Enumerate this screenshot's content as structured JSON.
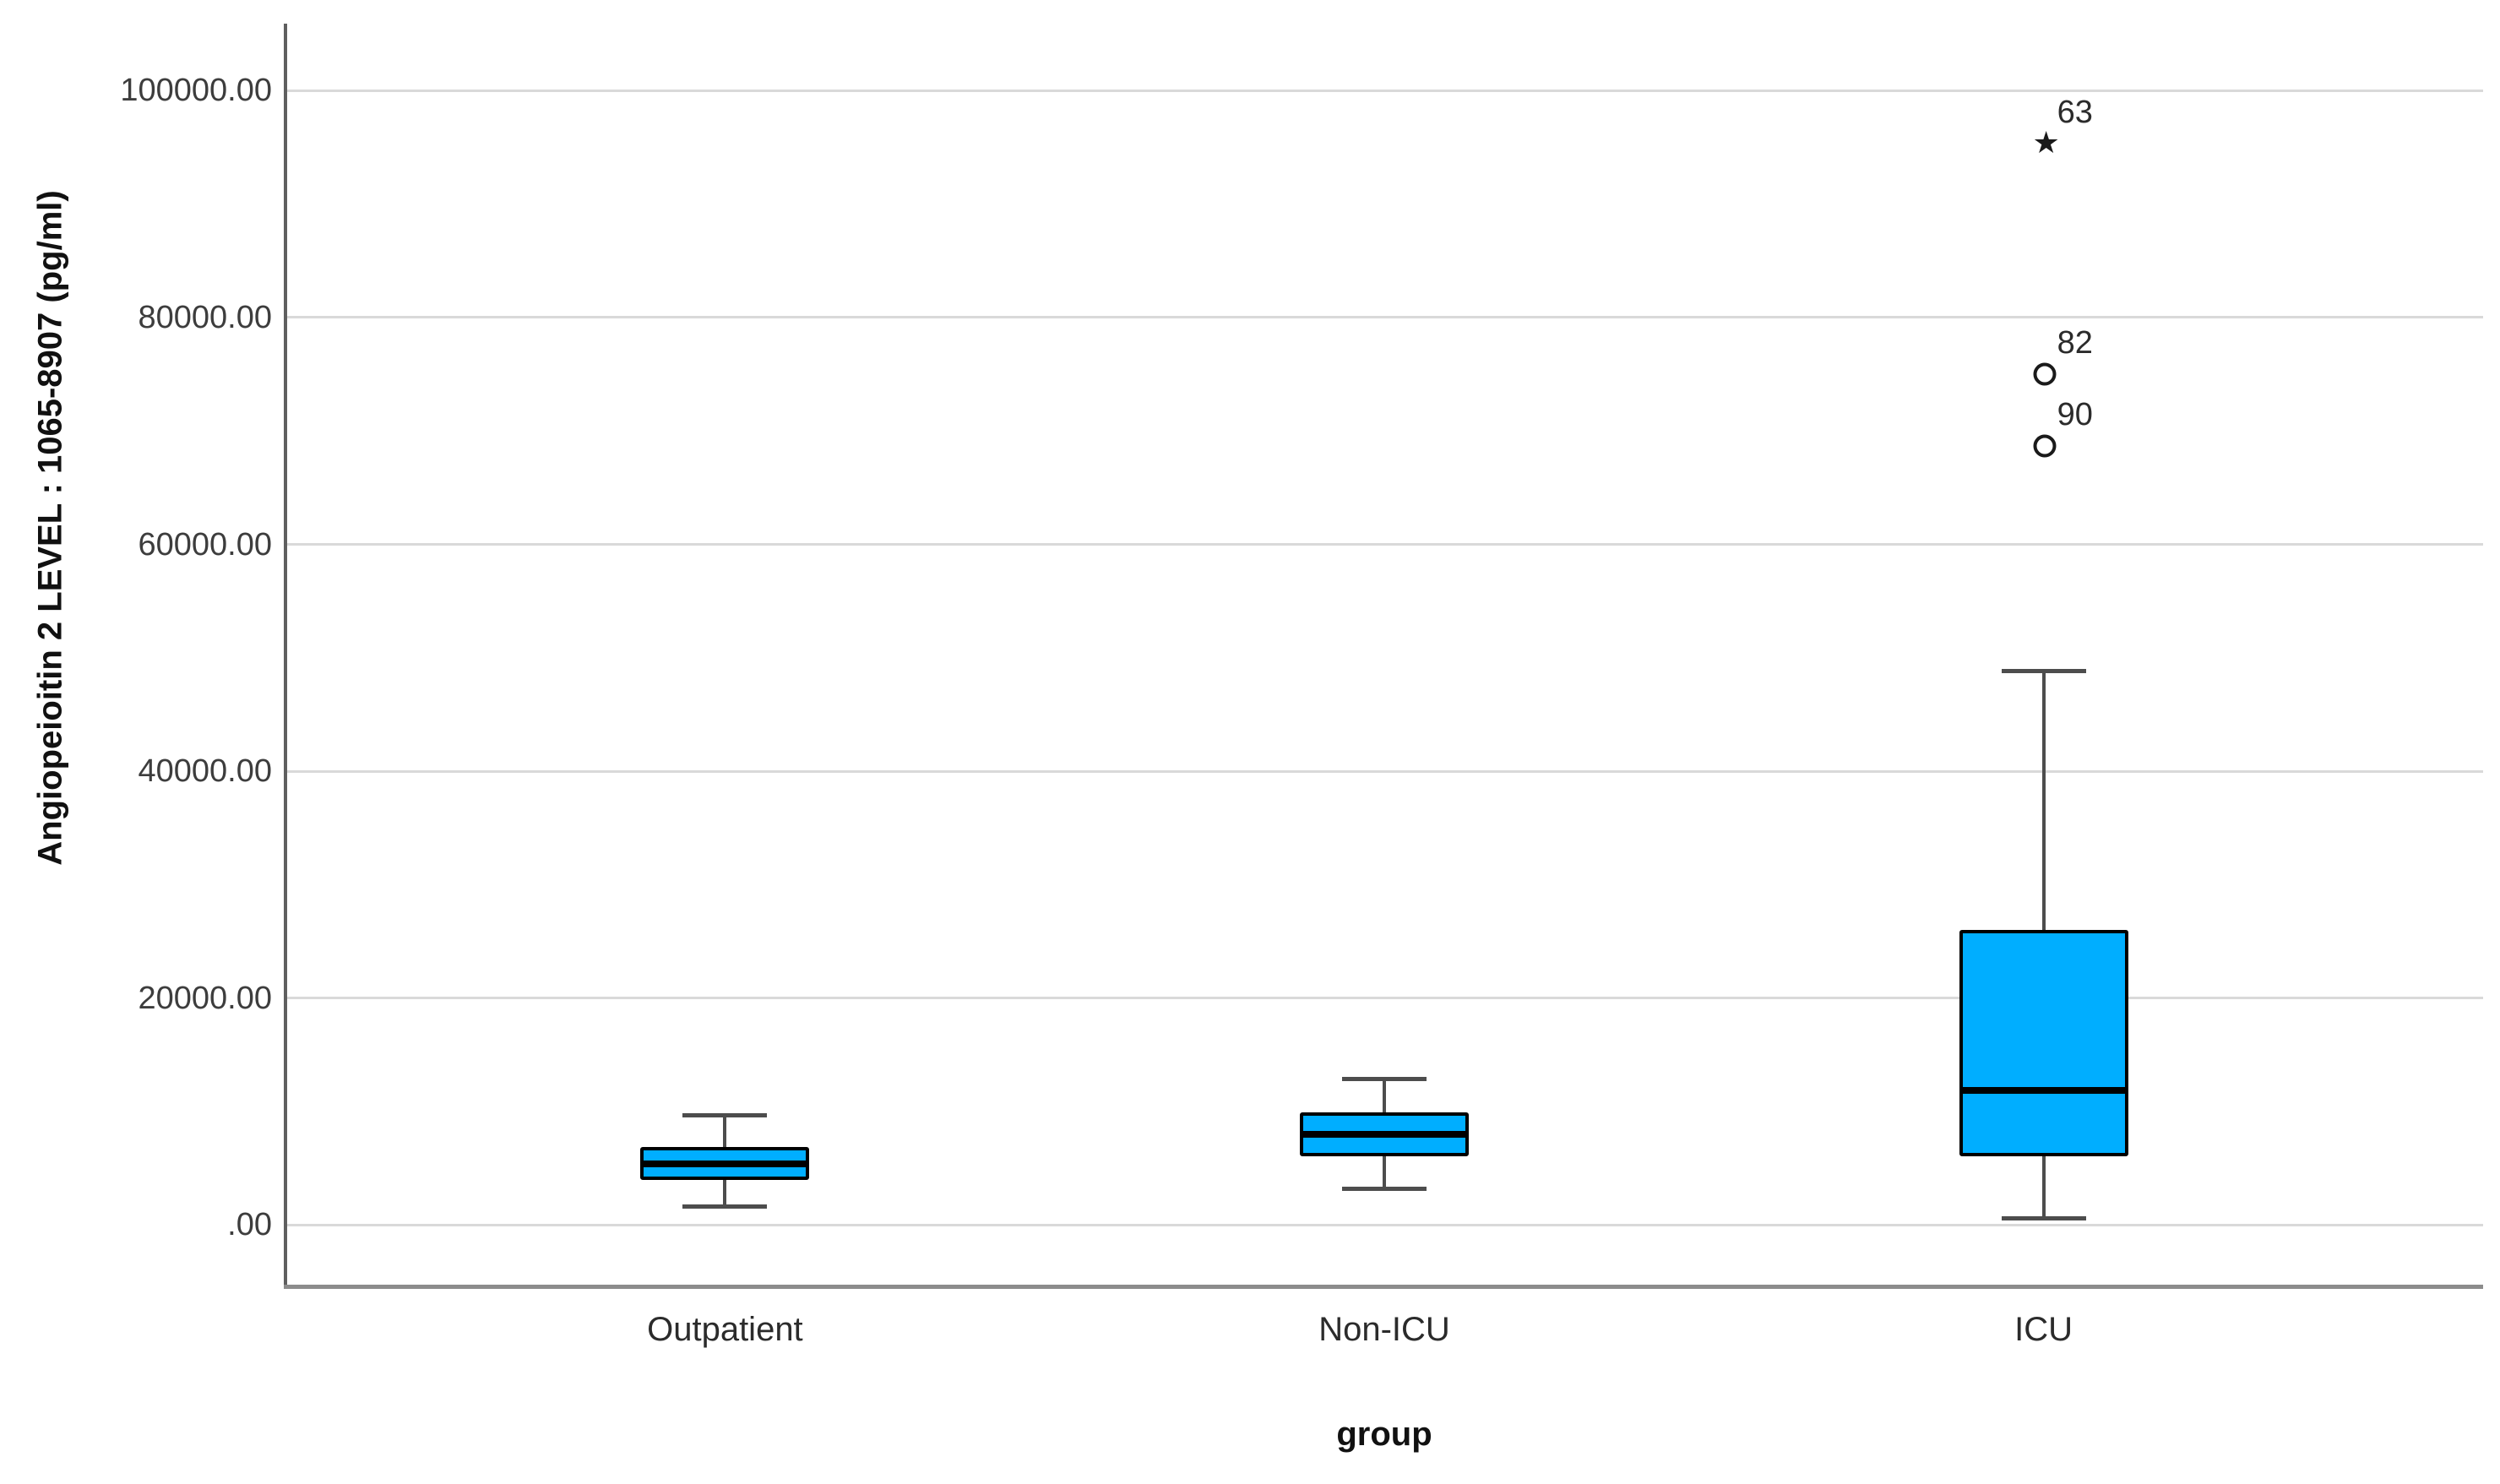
{
  "figure": {
    "background": "#ffffff"
  },
  "chart_data": {
    "type": "boxplot",
    "title": "",
    "xlabel": "group",
    "ylabel": "Angiopeioitin 2 LEVEL : 1065-8907 (pg/ml)",
    "categories": [
      "Outpatient",
      "Non-ICU",
      "ICU"
    ],
    "ylim": [
      -5400,
      105900
    ],
    "grid": "horizontal",
    "legend": "none",
    "yticks": [
      {
        "value": 0,
        "label": ".00"
      },
      {
        "value": 20000,
        "label": "20000.00"
      },
      {
        "value": 40000,
        "label": "40000.00"
      },
      {
        "value": 60000,
        "label": "60000.00"
      },
      {
        "value": 80000,
        "label": "80000.00"
      },
      {
        "value": 100000,
        "label": "100000.00"
      }
    ],
    "series": [
      {
        "category": "Outpatient",
        "whisker_low": 1600,
        "q1": 4000,
        "median": 5400,
        "q3": 6900,
        "whisker_high": 9700,
        "outliers": []
      },
      {
        "category": "Non-ICU",
        "whisker_low": 3200,
        "q1": 6100,
        "median": 8000,
        "q3": 9900,
        "whisker_high": 12900,
        "outliers": []
      },
      {
        "category": "ICU",
        "whisker_low": 600,
        "q1": 6100,
        "median": 11900,
        "q3": 26000,
        "whisker_high": 48800,
        "outliers": [
          {
            "case": "90",
            "value": 68700,
            "marker": "circle"
          },
          {
            "case": "82",
            "value": 75000,
            "marker": "circle"
          },
          {
            "case": "63",
            "value": 95300,
            "marker": "star"
          }
        ]
      }
    ],
    "colors": {
      "box_fill": "#00AEFF",
      "box_border": "#000000",
      "median": "#000000",
      "whisker": "#4d4d4d",
      "gridline": "#d9d9d9",
      "y_axis_line": "#5f5f5f",
      "x_axis_line": "#8c8c8c",
      "tick_label": "#3d3d3d",
      "category_label": "#2b2b2b",
      "outlier": "#1a1a1a"
    }
  }
}
